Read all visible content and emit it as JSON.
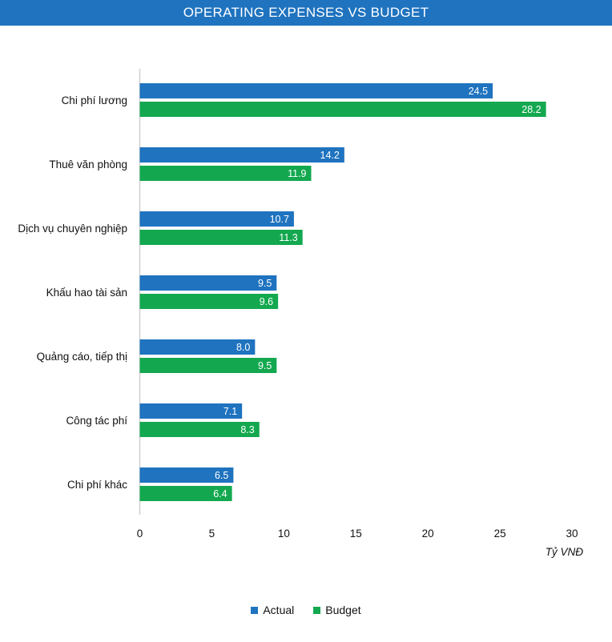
{
  "chart_data": {
    "type": "bar",
    "orientation": "horizontal",
    "title": "OPERATING EXPENSES VS BUDGET",
    "categories": [
      "Chi phí lương",
      "Thuê văn phòng",
      "Dịch vụ chuyên nghiệp",
      "Khấu hao tài sản",
      "Quảng cáo, tiếp thị",
      "Công tác phí",
      "Chi phí khác"
    ],
    "series": [
      {
        "name": "Actual",
        "color": "#1F73BF",
        "values": [
          24.5,
          14.2,
          10.7,
          9.5,
          8.0,
          7.1,
          6.5
        ]
      },
      {
        "name": "Budget",
        "color": "#13A84F",
        "values": [
          28.2,
          11.9,
          11.3,
          9.6,
          9.5,
          8.3,
          6.4
        ]
      }
    ],
    "xlim": [
      0,
      30
    ],
    "xticks": [
      "0",
      "5",
      "10",
      "15",
      "20",
      "25",
      "30"
    ],
    "xlabel": "Tỷ VNĐ",
    "ylabel": "",
    "legend_position": "bottom",
    "grid": false
  }
}
